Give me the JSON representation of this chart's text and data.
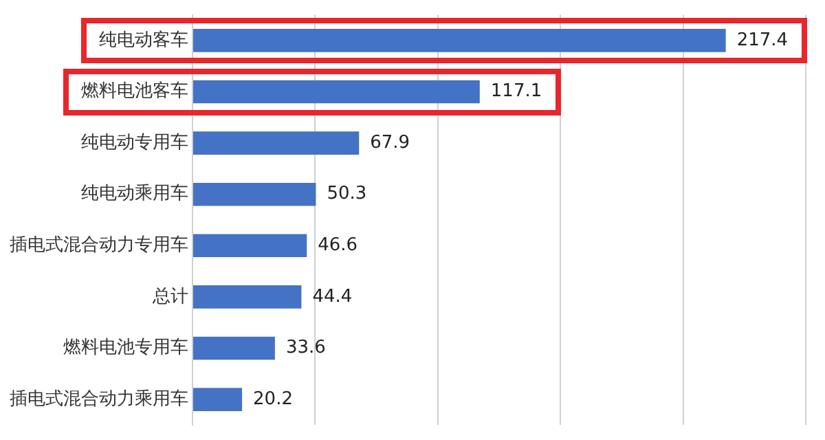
{
  "chart_data": {
    "type": "bar",
    "orientation": "horizontal",
    "categories": [
      "纯电动客车",
      "燃料电池客车",
      "纯电动专用车",
      "纯电动乘用车",
      "插电式混合动力专用车",
      "总计",
      "燃料电池专用车",
      "插电式混合动力乘用车"
    ],
    "values": [
      217.4,
      117.1,
      67.9,
      50.3,
      46.6,
      44.4,
      33.6,
      20.2
    ],
    "color": "#4472c4",
    "xlim": [
      0,
      250
    ],
    "xticks": [
      {
        "value": 0,
        "label": null
      },
      {
        "value": 50,
        "label": null
      },
      {
        "value": 100,
        "label": null
      },
      {
        "value": 150,
        "label": null
      },
      {
        "value": 200,
        "label": null
      },
      {
        "value": 250,
        "label": null
      }
    ],
    "grid": "x",
    "tick_labels": "y",
    "data_labels": true,
    "legend": false
  }
}
